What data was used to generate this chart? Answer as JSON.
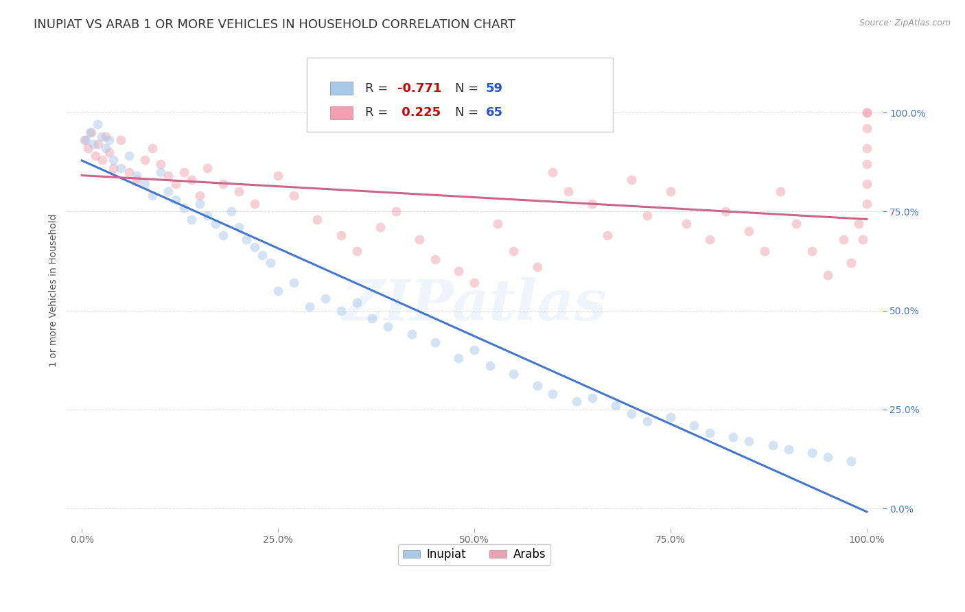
{
  "title": "INUPIAT VS ARAB 1 OR MORE VEHICLES IN HOUSEHOLD CORRELATION CHART",
  "source": "Source: ZipAtlas.com",
  "ylabel": "1 or more Vehicles in Household",
  "watermark": "ZIPatlas",
  "inupiat_R": -0.771,
  "inupiat_N": 59,
  "arab_R": 0.225,
  "arab_N": 65,
  "inupiat_color": "#a8c8e8",
  "arab_color": "#f0a0b0",
  "inupiat_line_color": "#4477cc",
  "arab_line_color": "#cc6688",
  "legend_color_R": "#cc0000",
  "legend_color_N": "#2255cc",
  "inupiat_x": [
    0.5,
    1.0,
    1.5,
    2.0,
    2.5,
    3.0,
    3.5,
    4.0,
    5.0,
    6.0,
    7.0,
    8.0,
    9.0,
    10.0,
    11.0,
    12.0,
    13.0,
    14.0,
    15.0,
    16.0,
    17.0,
    18.0,
    19.0,
    20.0,
    21.0,
    22.0,
    23.0,
    24.0,
    25.0,
    27.0,
    29.0,
    31.0,
    33.0,
    35.0,
    37.0,
    39.0,
    42.0,
    45.0,
    48.0,
    50.0,
    52.0,
    55.0,
    58.0,
    60.0,
    63.0,
    65.0,
    68.0,
    70.0,
    72.0,
    75.0,
    78.0,
    80.0,
    83.0,
    85.0,
    88.0,
    90.0,
    93.0,
    95.0,
    98.0
  ],
  "inupiat_y": [
    93,
    95,
    92,
    97,
    94,
    91,
    93,
    88,
    86,
    89,
    84,
    82,
    79,
    85,
    80,
    78,
    76,
    73,
    77,
    74,
    72,
    69,
    75,
    71,
    68,
    66,
    64,
    62,
    55,
    57,
    51,
    53,
    50,
    52,
    48,
    46,
    44,
    42,
    38,
    40,
    36,
    34,
    31,
    29,
    27,
    28,
    26,
    24,
    22,
    23,
    21,
    19,
    18,
    17,
    16,
    15,
    14,
    13,
    12
  ],
  "arab_x": [
    0.3,
    0.8,
    1.2,
    1.7,
    2.1,
    2.6,
    3.0,
    3.5,
    4.0,
    5.0,
    6.0,
    7.0,
    8.0,
    9.0,
    10.0,
    11.0,
    12.0,
    13.0,
    14.0,
    15.0,
    16.0,
    18.0,
    20.0,
    22.0,
    25.0,
    27.0,
    30.0,
    33.0,
    35.0,
    38.0,
    40.0,
    43.0,
    45.0,
    48.0,
    50.0,
    53.0,
    55.0,
    58.0,
    60.0,
    62.0,
    65.0,
    67.0,
    70.0,
    72.0,
    75.0,
    77.0,
    80.0,
    82.0,
    85.0,
    87.0,
    89.0,
    91.0,
    93.0,
    95.0,
    97.0,
    98.0,
    99.0,
    99.5,
    100.0,
    100.0,
    100.0,
    100.0,
    100.0,
    100.0,
    100.0
  ],
  "arab_y": [
    93,
    91,
    95,
    89,
    92,
    88,
    94,
    90,
    86,
    93,
    85,
    83,
    88,
    91,
    87,
    84,
    82,
    85,
    83,
    79,
    86,
    82,
    80,
    77,
    84,
    79,
    73,
    69,
    65,
    71,
    75,
    68,
    63,
    60,
    57,
    72,
    65,
    61,
    85,
    80,
    77,
    69,
    83,
    74,
    80,
    72,
    68,
    75,
    70,
    65,
    80,
    72,
    65,
    59,
    68,
    62,
    72,
    68,
    77,
    82,
    87,
    91,
    96,
    100,
    100
  ],
  "xlim": [
    -2,
    102
  ],
  "ylim": [
    -5,
    115
  ],
  "xticks": [
    0,
    25,
    50,
    75,
    100
  ],
  "xticklabels": [
    "0.0%",
    "25.0%",
    "50.0%",
    "75.0%",
    "100.0%"
  ],
  "ytick_positions": [
    0,
    25,
    50,
    75,
    100
  ],
  "ytick_labels": [
    "0.0%",
    "25.0%",
    "50.0%",
    "75.0%",
    "100.0%"
  ],
  "grid_color": "#dddddd",
  "bg_color": "#ffffff",
  "title_fontsize": 13,
  "label_fontsize": 10,
  "tick_fontsize": 10,
  "marker_size": 100,
  "marker_alpha": 0.5,
  "line_width": 2.2
}
